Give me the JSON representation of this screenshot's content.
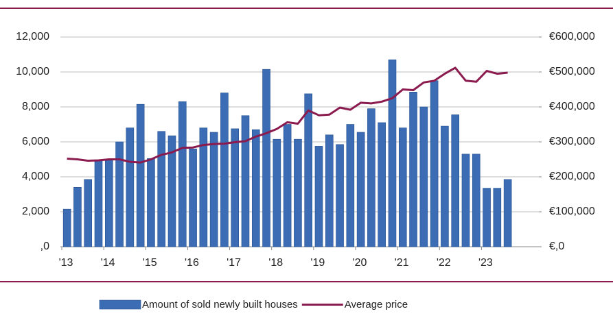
{
  "chart_data": {
    "type": "bar",
    "categories": [
      "'13",
      null,
      null,
      null,
      "'14",
      null,
      null,
      null,
      "'15",
      null,
      null,
      null,
      "'16",
      null,
      null,
      null,
      "'17",
      null,
      null,
      null,
      "'18",
      null,
      null,
      null,
      "'19",
      null,
      null,
      null,
      "'20",
      null,
      null,
      null,
      "'21",
      null,
      null,
      null,
      "'22",
      null,
      null,
      null,
      "'23",
      null,
      null
    ],
    "series": [
      {
        "name": "Amount of sold newly built houses",
        "type": "bar",
        "color": "#3c6cb4",
        "values": [
          2150,
          3400,
          3850,
          4950,
          4950,
          6000,
          6800,
          8150,
          5050,
          6600,
          6350,
          8300,
          5600,
          6800,
          6550,
          8800,
          6750,
          7500,
          6700,
          10150,
          6150,
          7000,
          6150,
          8750,
          5750,
          6400,
          5850,
          7000,
          6550,
          7900,
          7100,
          10700,
          6800,
          8850,
          8000,
          9500,
          6900,
          7550,
          5300,
          5300,
          3350,
          3350,
          3850
        ]
      },
      {
        "name": "Average price",
        "type": "line",
        "axis": "y2",
        "color": "#8b1a4e",
        "values": [
          252000,
          250000,
          246000,
          247000,
          250000,
          250000,
          243000,
          241000,
          250000,
          263000,
          270000,
          283000,
          284000,
          291000,
          294000,
          295000,
          299000,
          302000,
          315000,
          325000,
          337000,
          356000,
          352000,
          390000,
          376000,
          378000,
          398000,
          392000,
          412000,
          410000,
          415000,
          425000,
          450000,
          448000,
          470000,
          475000,
          495000,
          512000,
          475000,
          472000,
          503000,
          495000,
          498000
        ]
      }
    ],
    "ylim": [
      0,
      12000
    ],
    "yticks": [
      {
        "value": 0,
        "label": ",0"
      },
      {
        "value": 2000,
        "label": "2,000"
      },
      {
        "value": 4000,
        "label": "4,000"
      },
      {
        "value": 6000,
        "label": "6,000"
      },
      {
        "value": 8000,
        "label": "8,000"
      },
      {
        "value": 10000,
        "label": "10,000"
      },
      {
        "value": 12000,
        "label": "12,000"
      }
    ],
    "y2lim": [
      0,
      600000
    ],
    "y2ticks": [
      {
        "value": 0,
        "label": "€,0"
      },
      {
        "value": 100000,
        "label": "€100,000"
      },
      {
        "value": 200000,
        "label": "€200,000"
      },
      {
        "value": 300000,
        "label": "€300,000"
      },
      {
        "value": 400000,
        "label": "€400,000"
      },
      {
        "value": 500000,
        "label": "€500,000"
      },
      {
        "value": 600000,
        "label": "€600,000"
      }
    ],
    "grid": true,
    "legend": "bottom"
  }
}
